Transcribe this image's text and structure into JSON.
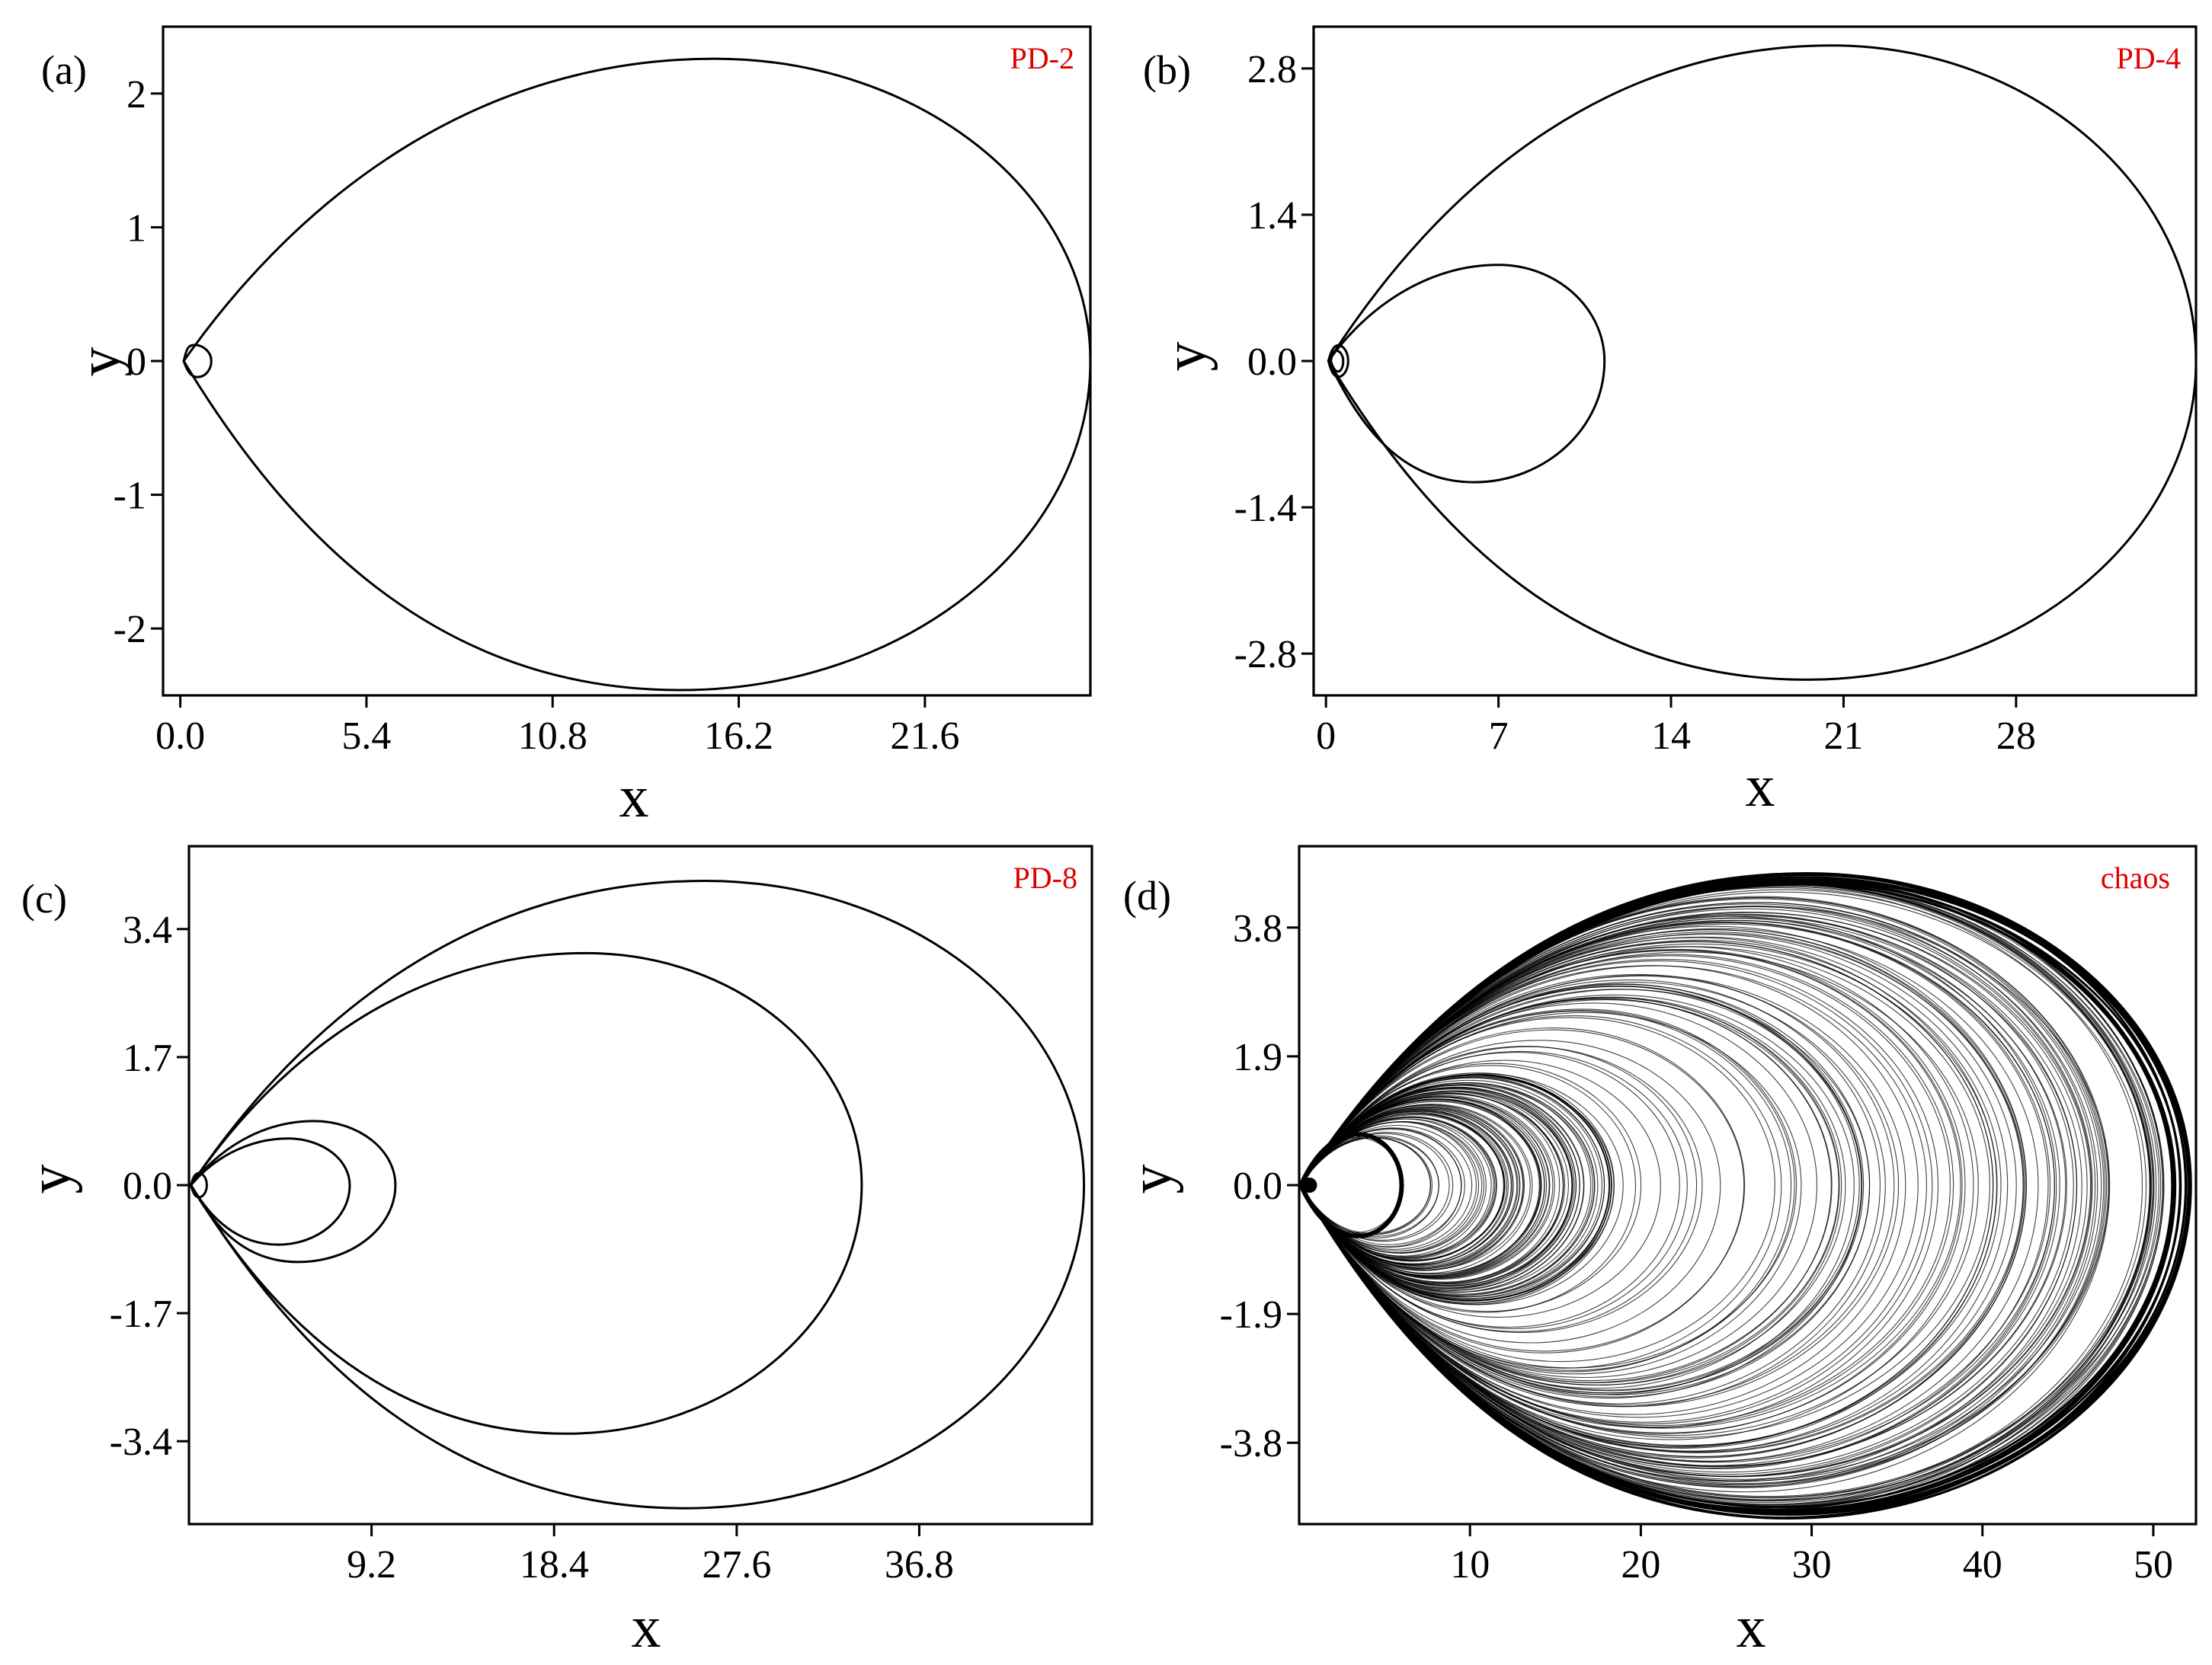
{
  "colors": {
    "tag": "#e00000",
    "line": "#000000",
    "background": "#ffffff"
  },
  "chart_data": [
    {
      "type": "line",
      "panel": "(a)",
      "tag": "PD-2",
      "title": "",
      "xlabel": "x",
      "ylabel": "y",
      "xlim": [
        -0.5,
        26.4
      ],
      "ylim": [
        -2.5,
        2.5
      ],
      "xticks": [
        "0.0",
        "5.4",
        "10.8",
        "16.2",
        "21.6"
      ],
      "xtick_values": [
        0,
        5.4,
        10.8,
        16.2,
        21.6
      ],
      "yticks": [
        "2",
        "1",
        "0",
        "-1",
        "-2"
      ],
      "ytick_values": [
        2,
        1,
        0,
        -1,
        -2
      ],
      "grid": false,
      "series": [
        {
          "loops": [
            {
              "xmin": 0.1,
              "xmax": 26.4,
              "ytop": 2.26,
              "ybot": -2.46,
              "xtop": 15.5,
              "xbot": 14.5
            },
            {
              "xmin": 0.1,
              "xmax": 0.9,
              "ytop": 0.12,
              "ybot": -0.12,
              "xtop": 0.4,
              "xbot": 0.5
            }
          ]
        }
      ]
    },
    {
      "type": "line",
      "panel": "(b)",
      "tag": "PD-4",
      "title": "",
      "xlabel": "x",
      "ylabel": "y",
      "xlim": [
        -0.5,
        35.3
      ],
      "ylim": [
        -3.2,
        3.2
      ],
      "xticks": [
        "0",
        "7",
        "14",
        "21",
        "28"
      ],
      "xtick_values": [
        0,
        7,
        14,
        21,
        28
      ],
      "yticks": [
        "2.8",
        "1.4",
        "0.0",
        "-1.4",
        "-2.8"
      ],
      "ytick_values": [
        2.8,
        1.4,
        0.0,
        -1.4,
        -2.8
      ],
      "grid": false,
      "series": [
        {
          "loops": [
            {
              "xmin": 0.1,
              "xmax": 35.3,
              "ytop": 3.02,
              "ybot": -3.05,
              "xtop": 20.5,
              "xbot": 19.5
            },
            {
              "xmin": 0.1,
              "xmax": 11.3,
              "ytop": 0.92,
              "ybot": -1.16,
              "xtop": 7.0,
              "xbot": 6.0
            },
            {
              "xmin": 0.1,
              "xmax": 0.9,
              "ytop": 0.15,
              "ybot": -0.15,
              "xtop": 0.5,
              "xbot": 0.5
            },
            {
              "xmin": 0.2,
              "xmax": 0.7,
              "ytop": 0.1,
              "ybot": -0.1,
              "xtop": 0.4,
              "xbot": 0.5
            }
          ]
        }
      ]
    },
    {
      "type": "line",
      "panel": "(c)",
      "tag": "PD-8",
      "title": "",
      "xlabel": "x",
      "ylabel": "y",
      "xlim": [
        0,
        45.5
      ],
      "ylim": [
        -4.5,
        4.5
      ],
      "xticks": [
        "9.2",
        "18.4",
        "27.6",
        "36.8"
      ],
      "xtick_values": [
        9.2,
        18.4,
        27.6,
        36.8
      ],
      "yticks": [
        "3.4",
        "1.7",
        "0.0",
        "-1.7",
        "-3.4"
      ],
      "ytick_values": [
        3.4,
        1.7,
        0.0,
        -1.7,
        -3.4
      ],
      "grid": false,
      "series": [
        {
          "loops": [
            {
              "xmin": 0.1,
              "xmax": 45.1,
              "ytop": 4.04,
              "ybot": -4.29,
              "xtop": 26.0,
              "xbot": 25.0
            },
            {
              "xmin": 0.1,
              "xmax": 33.9,
              "ytop": 3.08,
              "ybot": -3.3,
              "xtop": 20.0,
              "xbot": 19.0
            },
            {
              "xmin": 0.1,
              "xmax": 10.4,
              "ytop": 0.85,
              "ybot": -1.02,
              "xtop": 6.3,
              "xbot": 5.5
            },
            {
              "xmin": 0.1,
              "xmax": 8.1,
              "ytop": 0.62,
              "ybot": -0.79,
              "xtop": 5.0,
              "xbot": 4.5
            },
            {
              "xmin": 0.1,
              "xmax": 0.9,
              "ytop": 0.16,
              "ybot": -0.16,
              "xtop": 0.5,
              "xbot": 0.5
            }
          ]
        }
      ]
    },
    {
      "type": "line",
      "panel": "(d)",
      "tag": "chaos",
      "title": "",
      "xlabel": "x",
      "ylabel": "y",
      "xlim": [
        0,
        52.5
      ],
      "ylim": [
        -5.0,
        5.0
      ],
      "xticks": [
        "10",
        "20",
        "30",
        "40",
        "50"
      ],
      "xtick_values": [
        10,
        20,
        30,
        40,
        50
      ],
      "yticks": [
        "3.8",
        "1.9",
        "0.0",
        "-1.9",
        "-3.8"
      ],
      "ytick_values": [
        3.8,
        1.9,
        0.0,
        -1.9,
        -3.8
      ],
      "grid": false,
      "series": [
        {
          "envelope": {
            "xmin": 0.1,
            "xmax": 52.2,
            "ytop": 4.6,
            "ybot": -4.9
          },
          "cavity": {
            "xmin": 0.3,
            "xmax": 6.0,
            "ymax": 0.7
          },
          "inner_band_xmax": [
            6,
            19
          ],
          "outer_band_xmax": [
            19,
            52.2
          ]
        }
      ]
    }
  ]
}
